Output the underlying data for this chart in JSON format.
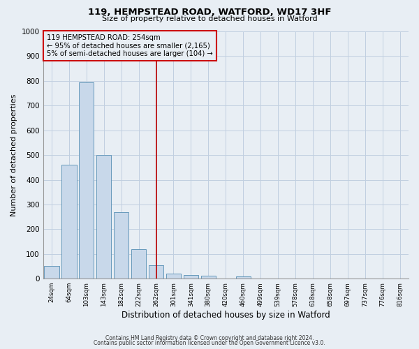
{
  "title": "119, HEMPSTEAD ROAD, WATFORD, WD17 3HF",
  "subtitle": "Size of property relative to detached houses in Watford",
  "xlabel": "Distribution of detached houses by size in Watford",
  "ylabel": "Number of detached properties",
  "bar_labels": [
    "24sqm",
    "64sqm",
    "103sqm",
    "143sqm",
    "182sqm",
    "222sqm",
    "262sqm",
    "301sqm",
    "341sqm",
    "380sqm",
    "420sqm",
    "460sqm",
    "499sqm",
    "539sqm",
    "578sqm",
    "618sqm",
    "658sqm",
    "697sqm",
    "737sqm",
    "776sqm",
    "816sqm"
  ],
  "bar_values": [
    50,
    460,
    795,
    500,
    270,
    120,
    55,
    20,
    15,
    12,
    0,
    8,
    0,
    0,
    0,
    0,
    0,
    0,
    0,
    0,
    0
  ],
  "bar_color": "#c8d8ea",
  "bar_edge_color": "#6699bb",
  "vline_x": 6,
  "vline_color": "#bb0000",
  "annotation_box_text": "119 HEMPSTEAD ROAD: 254sqm\n← 95% of detached houses are smaller (2,165)\n5% of semi-detached houses are larger (104) →",
  "annotation_box_edge_color": "#cc0000",
  "ylim": [
    0,
    1000
  ],
  "yticks": [
    0,
    100,
    200,
    300,
    400,
    500,
    600,
    700,
    800,
    900,
    1000
  ],
  "footer_line1": "Contains HM Land Registry data © Crown copyright and database right 2024.",
  "footer_line2": "Contains public sector information licensed under the Open Government Licence v3.0.",
  "bg_color": "#e8eef4",
  "plot_bg_color": "#e8eef4",
  "grid_color": "#c0cfe0"
}
